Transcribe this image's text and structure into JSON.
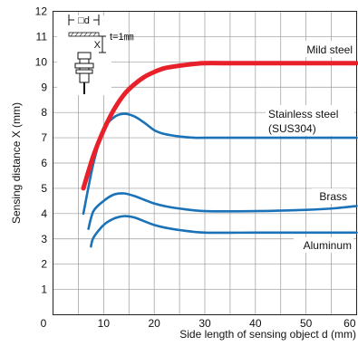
{
  "chart_data": {
    "type": "line",
    "xlabel": "Side length of sensing object d (mm)",
    "ylabel": "Sensing distance X (mm)",
    "xlim": [
      0,
      60
    ],
    "ylim": [
      0,
      12
    ],
    "x_ticks": [
      0,
      10,
      20,
      30,
      40,
      50,
      60
    ],
    "y_ticks": [
      1,
      2,
      3,
      4,
      5,
      6,
      7,
      8,
      9,
      10,
      11,
      12
    ],
    "grid": true,
    "series": [
      {
        "name": "Mild steel",
        "color": "#e8202a",
        "emphasis": true,
        "x": [
          6,
          8,
          10,
          12,
          14,
          16,
          18,
          20,
          22,
          25,
          28,
          30,
          35,
          40,
          50,
          60
        ],
        "y": [
          5.0,
          6.3,
          7.3,
          8.1,
          8.7,
          9.1,
          9.4,
          9.6,
          9.75,
          9.85,
          9.92,
          9.95,
          9.95,
          9.95,
          9.95,
          9.95
        ]
      },
      {
        "name": "Stainless steel",
        "name_line2": "(SUS304)",
        "color": "#1a72b8",
        "x": [
          6,
          8,
          10,
          12,
          14,
          16,
          18,
          20,
          22,
          25,
          28,
          30,
          40,
          50,
          60
        ],
        "y": [
          4.0,
          6.0,
          7.3,
          7.8,
          7.95,
          7.85,
          7.6,
          7.3,
          7.15,
          7.05,
          7.0,
          7.0,
          7.0,
          7.0,
          7.0
        ]
      },
      {
        "name": "Brass",
        "color": "#1a72b8",
        "x": [
          7,
          8,
          10,
          12,
          14,
          16,
          18,
          20,
          22,
          25,
          30,
          40,
          50,
          55,
          60
        ],
        "y": [
          3.4,
          4.1,
          4.5,
          4.75,
          4.8,
          4.7,
          4.55,
          4.4,
          4.3,
          4.2,
          4.1,
          4.1,
          4.15,
          4.2,
          4.3
        ]
      },
      {
        "name": "Aluminum",
        "color": "#1a72b8",
        "x": [
          7.5,
          8,
          10,
          12,
          14,
          16,
          18,
          20,
          22,
          25,
          30,
          40,
          50,
          60
        ],
        "y": [
          2.7,
          3.05,
          3.55,
          3.8,
          3.9,
          3.85,
          3.7,
          3.55,
          3.45,
          3.35,
          3.25,
          3.25,
          3.25,
          3.25
        ]
      }
    ],
    "annotations": {
      "inset_thickness": "t=1㎜",
      "inset_side_label": "□d",
      "inset_distance_label": "X"
    }
  }
}
